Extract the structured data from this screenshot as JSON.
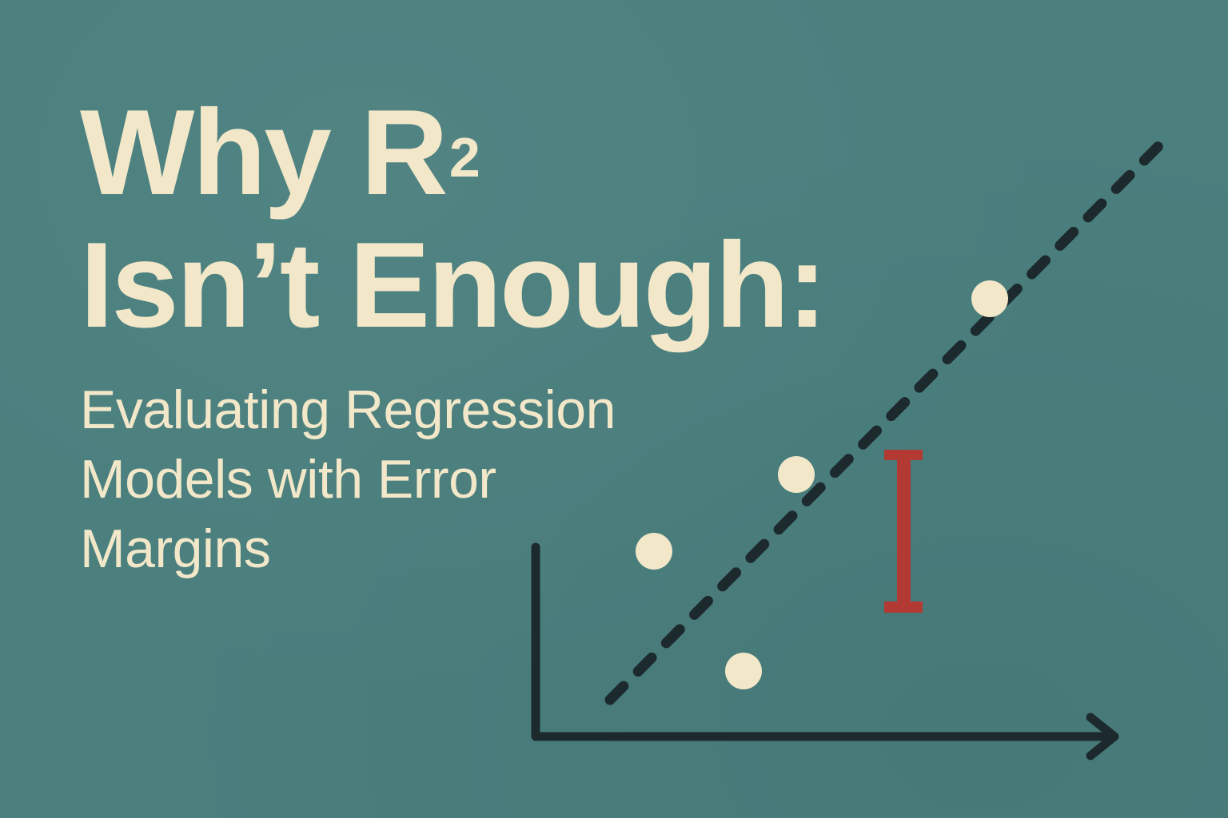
{
  "title": {
    "line1_prefix": "Why R",
    "line1_superscript": "2",
    "line2": "Isn’t Enough:"
  },
  "subtitle": {
    "lines": [
      "Evaluating Regression",
      "Models with Error",
      "Margins"
    ]
  },
  "illustration": {
    "type": "scatter-with-fit-line",
    "axes": "x and y axes with arrowhead on x axis",
    "fit_line_style": "dashed",
    "point_count": 4,
    "error_bar_count": 1
  },
  "colors": {
    "background": "#4a7f7e",
    "text": "#f2e8c9",
    "axis": "#1c2a2e",
    "points": "#f2e8c9",
    "error_bar": "#b23a33"
  }
}
